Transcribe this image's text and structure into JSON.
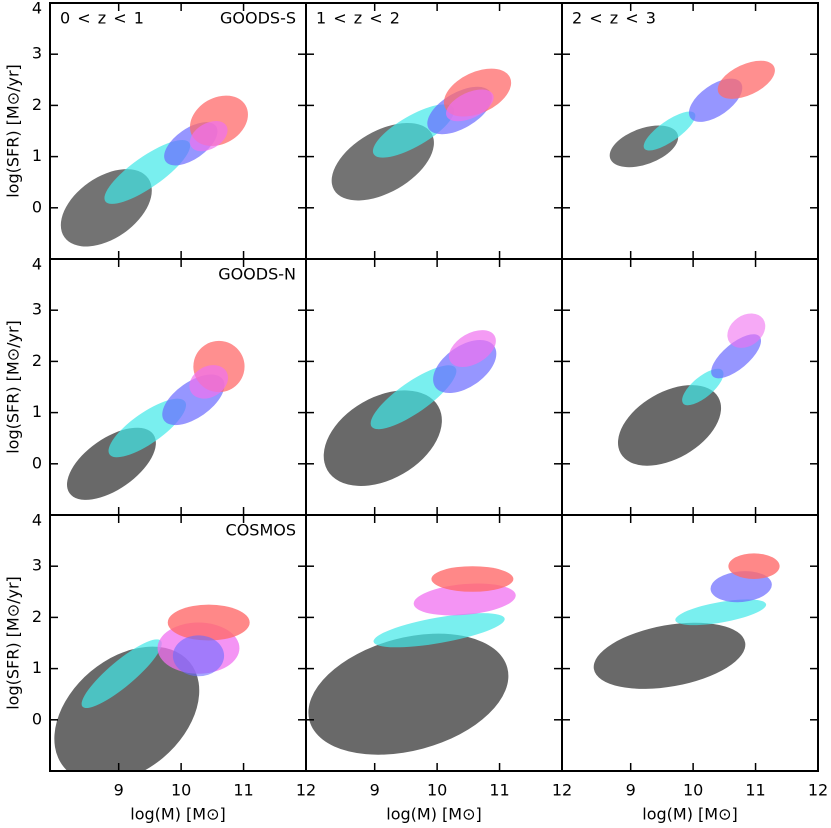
{
  "chart_data": [
    {
      "type": "heatmap",
      "label": "0 < z < 1",
      "field": "GOODS-S",
      "ylabel": "log(SFR) [M⊙/yr]",
      "xlim": [
        7.9,
        12
      ],
      "ylim": [
        -1,
        4
      ],
      "xticks": [
        9,
        10,
        11,
        12
      ],
      "yticks": [
        0,
        1,
        2,
        3,
        4
      ],
      "x_tick_labels": false,
      "y_tick_labels": true
    },
    {
      "type": "heatmap",
      "label": "1 < z < 2",
      "xlim": [
        7.9,
        12
      ],
      "ylim": [
        -1,
        4
      ],
      "xticks": [
        9,
        10,
        11,
        12
      ],
      "yticks": [
        0,
        1,
        2,
        3,
        4
      ],
      "x_tick_labels": false,
      "y_tick_labels": false
    },
    {
      "type": "heatmap",
      "label": "2 < z < 3",
      "xlim": [
        7.9,
        12
      ],
      "ylim": [
        -1,
        4
      ],
      "xticks": [
        9,
        10,
        11,
        12
      ],
      "yticks": [
        0,
        1,
        2,
        3,
        4
      ],
      "x_tick_labels": false,
      "y_tick_labels": false
    },
    {
      "type": "heatmap",
      "field": "GOODS-N",
      "ylabel": "log(SFR) [M⊙/yr]",
      "xlim": [
        7.9,
        12
      ],
      "ylim": [
        -1,
        4
      ],
      "xticks": [
        9,
        10,
        11,
        12
      ],
      "yticks": [
        0,
        1,
        2,
        3,
        4
      ],
      "x_tick_labels": false,
      "y_tick_labels": true
    },
    {
      "type": "heatmap",
      "xlim": [
        7.9,
        12
      ],
      "ylim": [
        -1,
        4
      ],
      "xticks": [
        9,
        10,
        11,
        12
      ],
      "yticks": [
        0,
        1,
        2,
        3,
        4
      ],
      "x_tick_labels": false,
      "y_tick_labels": false
    },
    {
      "type": "heatmap",
      "xlim": [
        7.9,
        12
      ],
      "ylim": [
        -1,
        4
      ],
      "xticks": [
        9,
        10,
        11,
        12
      ],
      "yticks": [
        0,
        1,
        2,
        3,
        4
      ],
      "x_tick_labels": false,
      "y_tick_labels": false
    },
    {
      "type": "heatmap",
      "field": "COSMOS",
      "ylabel": "log(SFR) [M⊙/yr]",
      "xlabel": "log(M) [M⊙]",
      "xlim": [
        7.9,
        12
      ],
      "ylim": [
        -1,
        4
      ],
      "xticks": [
        9,
        10,
        11,
        12
      ],
      "yticks": [
        0,
        1,
        2,
        3,
        4
      ],
      "x_tick_labels": true,
      "y_tick_labels": true
    },
    {
      "type": "heatmap",
      "xlabel": "log(M) [M⊙]",
      "xlim": [
        7.9,
        12
      ],
      "ylim": [
        -1,
        4
      ],
      "xticks": [
        9,
        10,
        11,
        12
      ],
      "yticks": [
        0,
        1,
        2,
        3,
        4
      ],
      "x_tick_labels": true,
      "y_tick_labels": false
    },
    {
      "type": "heatmap",
      "xlabel": "log(M) [M⊙]",
      "xlim": [
        7.9,
        12
      ],
      "ylim": [
        -1,
        4
      ],
      "xticks": [
        9,
        10,
        11,
        12
      ],
      "yticks": [
        0,
        1,
        2,
        3,
        4
      ],
      "x_tick_labels": true,
      "y_tick_labels": false
    }
  ]
}
